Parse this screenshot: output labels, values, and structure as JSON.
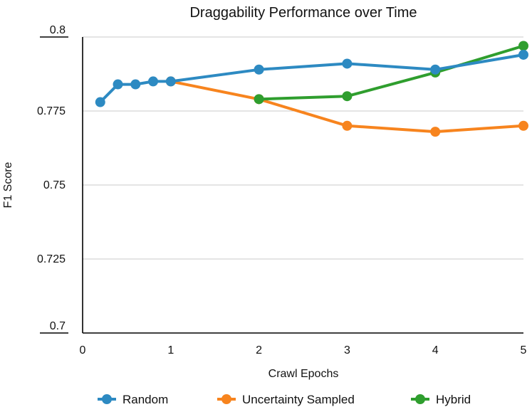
{
  "chart_data": {
    "type": "line",
    "title": "Draggability Performance over Time",
    "xlabel": "Crawl Epochs",
    "ylabel": "F1 Score",
    "xlim": [
      0,
      5
    ],
    "ylim": [
      0.7,
      0.8
    ],
    "x_ticks": [
      "0",
      "1",
      "2",
      "3",
      "4",
      "5"
    ],
    "y_ticks": [
      "0.7",
      "0.725",
      "0.75",
      "0.775",
      "0.8"
    ],
    "grid": "horizontal",
    "legend_position": "bottom",
    "series": [
      {
        "name": "Random",
        "color": "#2d8ac2",
        "x": [
          0.2,
          0.4,
          0.6,
          0.8,
          1,
          2,
          3,
          4,
          5
        ],
        "values": [
          0.778,
          0.784,
          0.784,
          0.785,
          0.785,
          0.789,
          0.791,
          0.789,
          0.794
        ]
      },
      {
        "name": "Uncertainty Sampled",
        "color": "#f7841e",
        "x": [
          1,
          2,
          3,
          4,
          5
        ],
        "values": [
          0.785,
          0.779,
          0.77,
          0.768,
          0.77
        ]
      },
      {
        "name": "Hybrid",
        "color": "#2f9e2e",
        "x": [
          2,
          3,
          4,
          5
        ],
        "values": [
          0.779,
          0.78,
          0.788,
          0.797
        ]
      }
    ]
  }
}
